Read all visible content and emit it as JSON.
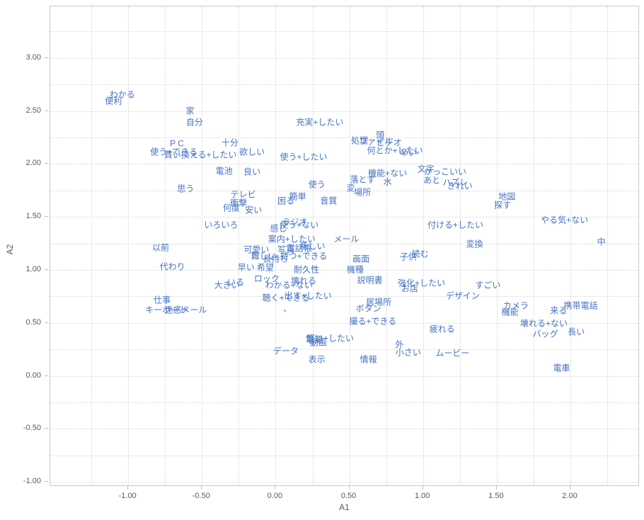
{
  "chart_data": {
    "type": "scatter",
    "title": "",
    "xlabel": "A1",
    "ylabel": "A2",
    "xlim": [
      -1.529,
      2.461
    ],
    "ylim": [
      -1.033,
      3.487
    ],
    "grid": {
      "on": true,
      "step": 0.25,
      "x_start": -1.25,
      "x_end": 2.25,
      "y_start": -1.0,
      "y_end": 3.25
    },
    "x_ticks": [
      {
        "label": "-1.00",
        "value": -1.0
      },
      {
        "label": "-0.50",
        "value": -0.5
      },
      {
        "label": "0.00",
        "value": 0.0
      },
      {
        "label": "0.50",
        "value": 0.5
      },
      {
        "label": "1.00",
        "value": 1.0
      },
      {
        "label": "1.50",
        "value": 1.5
      },
      {
        "label": "2.00",
        "value": 2.0
      }
    ],
    "y_ticks": [
      {
        "label": "3.00",
        "value": 3.0
      },
      {
        "label": "2.50",
        "value": 2.5
      },
      {
        "label": "2.00",
        "value": 2.0
      },
      {
        "label": "1.50",
        "value": 1.5
      },
      {
        "label": "1.00",
        "value": 1.0
      },
      {
        "label": "0.50",
        "value": 0.5
      },
      {
        "label": "0.00",
        "value": 0.0
      },
      {
        "label": "-0.50",
        "value": -0.5
      },
      {
        "label": "-1.00",
        "value": -1.0
      }
    ],
    "label_color": "#4472C4",
    "legend": "none",
    "points": [
      {
        "t": "わかる",
        "x": -1.04,
        "y": 2.65
      },
      {
        "t": "便利",
        "x": -1.1,
        "y": 2.59
      },
      {
        "t": "家",
        "x": -0.58,
        "y": 2.5
      },
      {
        "t": "自分",
        "x": -0.55,
        "y": 2.39
      },
      {
        "t": "P C",
        "x": -0.67,
        "y": 2.19
      },
      {
        "t": "使う+できる",
        "x": -0.69,
        "y": 2.11
      },
      {
        "t": "買い換える+したい",
        "x": -0.51,
        "y": 2.08
      },
      {
        "t": "十分",
        "x": -0.31,
        "y": 2.2
      },
      {
        "t": "欲しい",
        "x": -0.16,
        "y": 2.11
      },
      {
        "t": "電池",
        "x": -0.35,
        "y": 1.93
      },
      {
        "t": "良い",
        "x": -0.16,
        "y": 1.92
      },
      {
        "t": "使う+したい",
        "x": 0.19,
        "y": 2.06
      },
      {
        "t": "充実+したい",
        "x": 0.3,
        "y": 2.39
      },
      {
        "t": "思う",
        "x": -0.61,
        "y": 1.76
      },
      {
        "t": "テレビ",
        "x": -0.22,
        "y": 1.71
      },
      {
        "t": "衝撃",
        "x": -0.25,
        "y": 1.63
      },
      {
        "t": "何度",
        "x": -0.3,
        "y": 1.58
      },
      {
        "t": "安い",
        "x": -0.15,
        "y": 1.56
      },
      {
        "t": "いろいろ",
        "x": -0.37,
        "y": 1.42
      },
      {
        "t": "簡単",
        "x": 0.15,
        "y": 1.69
      },
      {
        "t": "困る",
        "x": 0.07,
        "y": 1.65
      },
      {
        "t": "使う",
        "x": 0.28,
        "y": 1.8
      },
      {
        "t": "音質",
        "x": 0.36,
        "y": 1.65
      },
      {
        "t": "変",
        "x": 0.51,
        "y": 1.77
      },
      {
        "t": "落とす",
        "x": 0.59,
        "y": 1.85
      },
      {
        "t": "場所",
        "x": 0.59,
        "y": 1.73
      },
      {
        "t": "処理",
        "x": 0.57,
        "y": 2.22
      },
      {
        "t": "ファイル",
        "x": 0.68,
        "y": 2.21
      },
      {
        "t": "頭",
        "x": 0.71,
        "y": 2.27
      },
      {
        "t": "ビデオ",
        "x": 0.77,
        "y": 2.2
      },
      {
        "t": "何とか+したい",
        "x": 0.81,
        "y": 2.12
      },
      {
        "t": "辛い",
        "x": 0.9,
        "y": 2.1
      },
      {
        "t": "機能+ない",
        "x": 0.76,
        "y": 1.91
      },
      {
        "t": "水",
        "x": 0.76,
        "y": 1.83
      },
      {
        "t": "文字",
        "x": 1.02,
        "y": 1.95
      },
      {
        "t": "かっこいい",
        "x": 1.15,
        "y": 1.92
      },
      {
        "t": "あと",
        "x": 1.06,
        "y": 1.84
      },
      {
        "t": "ハズレ",
        "x": 1.22,
        "y": 1.82
      },
      {
        "t": "きれい",
        "x": 1.25,
        "y": 1.79
      },
      {
        "t": "地図",
        "x": 1.57,
        "y": 1.69
      },
      {
        "t": "探す",
        "x": 1.54,
        "y": 1.61
      },
      {
        "t": "やる気+ない",
        "x": 1.96,
        "y": 1.47
      },
      {
        "t": "中",
        "x": 2.21,
        "y": 1.26
      },
      {
        "t": "付ける+したい",
        "x": 1.22,
        "y": 1.42
      },
      {
        "t": "変換",
        "x": 1.35,
        "y": 1.24
      },
      {
        "t": "メール",
        "x": 0.48,
        "y": 1.29
      },
      {
        "t": "ラジオ",
        "x": 0.13,
        "y": 1.45
      },
      {
        "t": "使う+ない",
        "x": 0.16,
        "y": 1.42
      },
      {
        "t": "感じ",
        "x": 0.02,
        "y": 1.39
      },
      {
        "t": "案内+したい",
        "x": 0.11,
        "y": 1.29
      },
      {
        "t": "写真",
        "x": 0.07,
        "y": 1.19
      },
      {
        "t": "電話帳",
        "x": 0.16,
        "y": 1.2
      },
      {
        "t": "新しい",
        "x": 0.25,
        "y": 1.22
      },
      {
        "t": "持つ+できる",
        "x": 0.19,
        "y": 1.13
      },
      {
        "t": "可愛い",
        "x": -0.13,
        "y": 1.19
      },
      {
        "t": "難しい",
        "x": -0.08,
        "y": 1.13
      },
      {
        "t": "長持ち",
        "x": 0.0,
        "y": 1.1
      },
      {
        "t": "以前",
        "x": -0.78,
        "y": 1.21
      },
      {
        "t": "代わり",
        "x": -0.7,
        "y": 1.03
      },
      {
        "t": "早い",
        "x": -0.2,
        "y": 1.02
      },
      {
        "t": "希望",
        "x": -0.07,
        "y": 1.02
      },
      {
        "t": "大きい",
        "x": -0.33,
        "y": 0.85
      },
      {
        "t": "いる",
        "x": -0.27,
        "y": 0.88
      },
      {
        "t": "ロック",
        "x": -0.06,
        "y": 0.91
      },
      {
        "t": "耐久性",
        "x": 0.21,
        "y": 1.0
      },
      {
        "t": "壊れる",
        "x": 0.19,
        "y": 0.89
      },
      {
        "t": "わかる+ない",
        "x": 0.09,
        "y": 0.85
      },
      {
        "t": "聴く+できる",
        "x": 0.07,
        "y": 0.73
      },
      {
        "t": "出す+したい",
        "x": 0.22,
        "y": 0.75
      },
      {
        "t": "、",
        "x": 0.08,
        "y": 0.63
      },
      {
        "t": "仕事",
        "x": -0.77,
        "y": 0.71
      },
      {
        "t": "キーボード",
        "x": -0.74,
        "y": 0.62
      },
      {
        "t": "迷惑メール",
        "x": -0.61,
        "y": 0.62
      },
      {
        "t": "画面",
        "x": 0.58,
        "y": 1.1
      },
      {
        "t": "機種",
        "x": 0.54,
        "y": 1.0
      },
      {
        "t": "説明書",
        "x": 0.64,
        "y": 0.9
      },
      {
        "t": "読む",
        "x": 0.98,
        "y": 1.15
      },
      {
        "t": "子供",
        "x": 0.9,
        "y": 1.12
      },
      {
        "t": "強化+したい",
        "x": 0.99,
        "y": 0.87
      },
      {
        "t": "お店",
        "x": 0.91,
        "y": 0.82
      },
      {
        "t": "すごい",
        "x": 1.44,
        "y": 0.85
      },
      {
        "t": "デザイン",
        "x": 1.27,
        "y": 0.75
      },
      {
        "t": "居場所",
        "x": 0.7,
        "y": 0.69
      },
      {
        "t": "ボタン",
        "x": 0.63,
        "y": 0.63
      },
      {
        "t": "撮る+できる",
        "x": 0.66,
        "y": 0.51
      },
      {
        "t": "カメラ",
        "x": 1.63,
        "y": 0.66
      },
      {
        "t": "機能",
        "x": 1.59,
        "y": 0.6
      },
      {
        "t": "携帯電話",
        "x": 2.07,
        "y": 0.66
      },
      {
        "t": "来る",
        "x": 1.92,
        "y": 0.61
      },
      {
        "t": "壊れる+ない",
        "x": 1.82,
        "y": 0.49
      },
      {
        "t": "バッグ",
        "x": 1.83,
        "y": 0.39
      },
      {
        "t": "長い",
        "x": 2.04,
        "y": 0.41
      },
      {
        "t": "疲れる",
        "x": 1.13,
        "y": 0.44
      },
      {
        "t": "外",
        "x": 0.84,
        "y": 0.29
      },
      {
        "t": "小さい",
        "x": 0.9,
        "y": 0.22
      },
      {
        "t": "ムービー",
        "x": 1.2,
        "y": 0.21
      },
      {
        "t": "電車",
        "x": 1.94,
        "y": 0.07
      },
      {
        "t": "情報",
        "x": 0.63,
        "y": 0.15
      },
      {
        "t": "表示",
        "x": 0.28,
        "y": 0.15
      },
      {
        "t": "データ",
        "x": 0.07,
        "y": 0.23
      },
      {
        "t": "電源",
        "x": 0.26,
        "y": 0.34
      },
      {
        "t": "動画",
        "x": 0.29,
        "y": 0.31
      },
      {
        "t": "軽い+したい",
        "x": 0.37,
        "y": 0.35
      }
    ]
  }
}
